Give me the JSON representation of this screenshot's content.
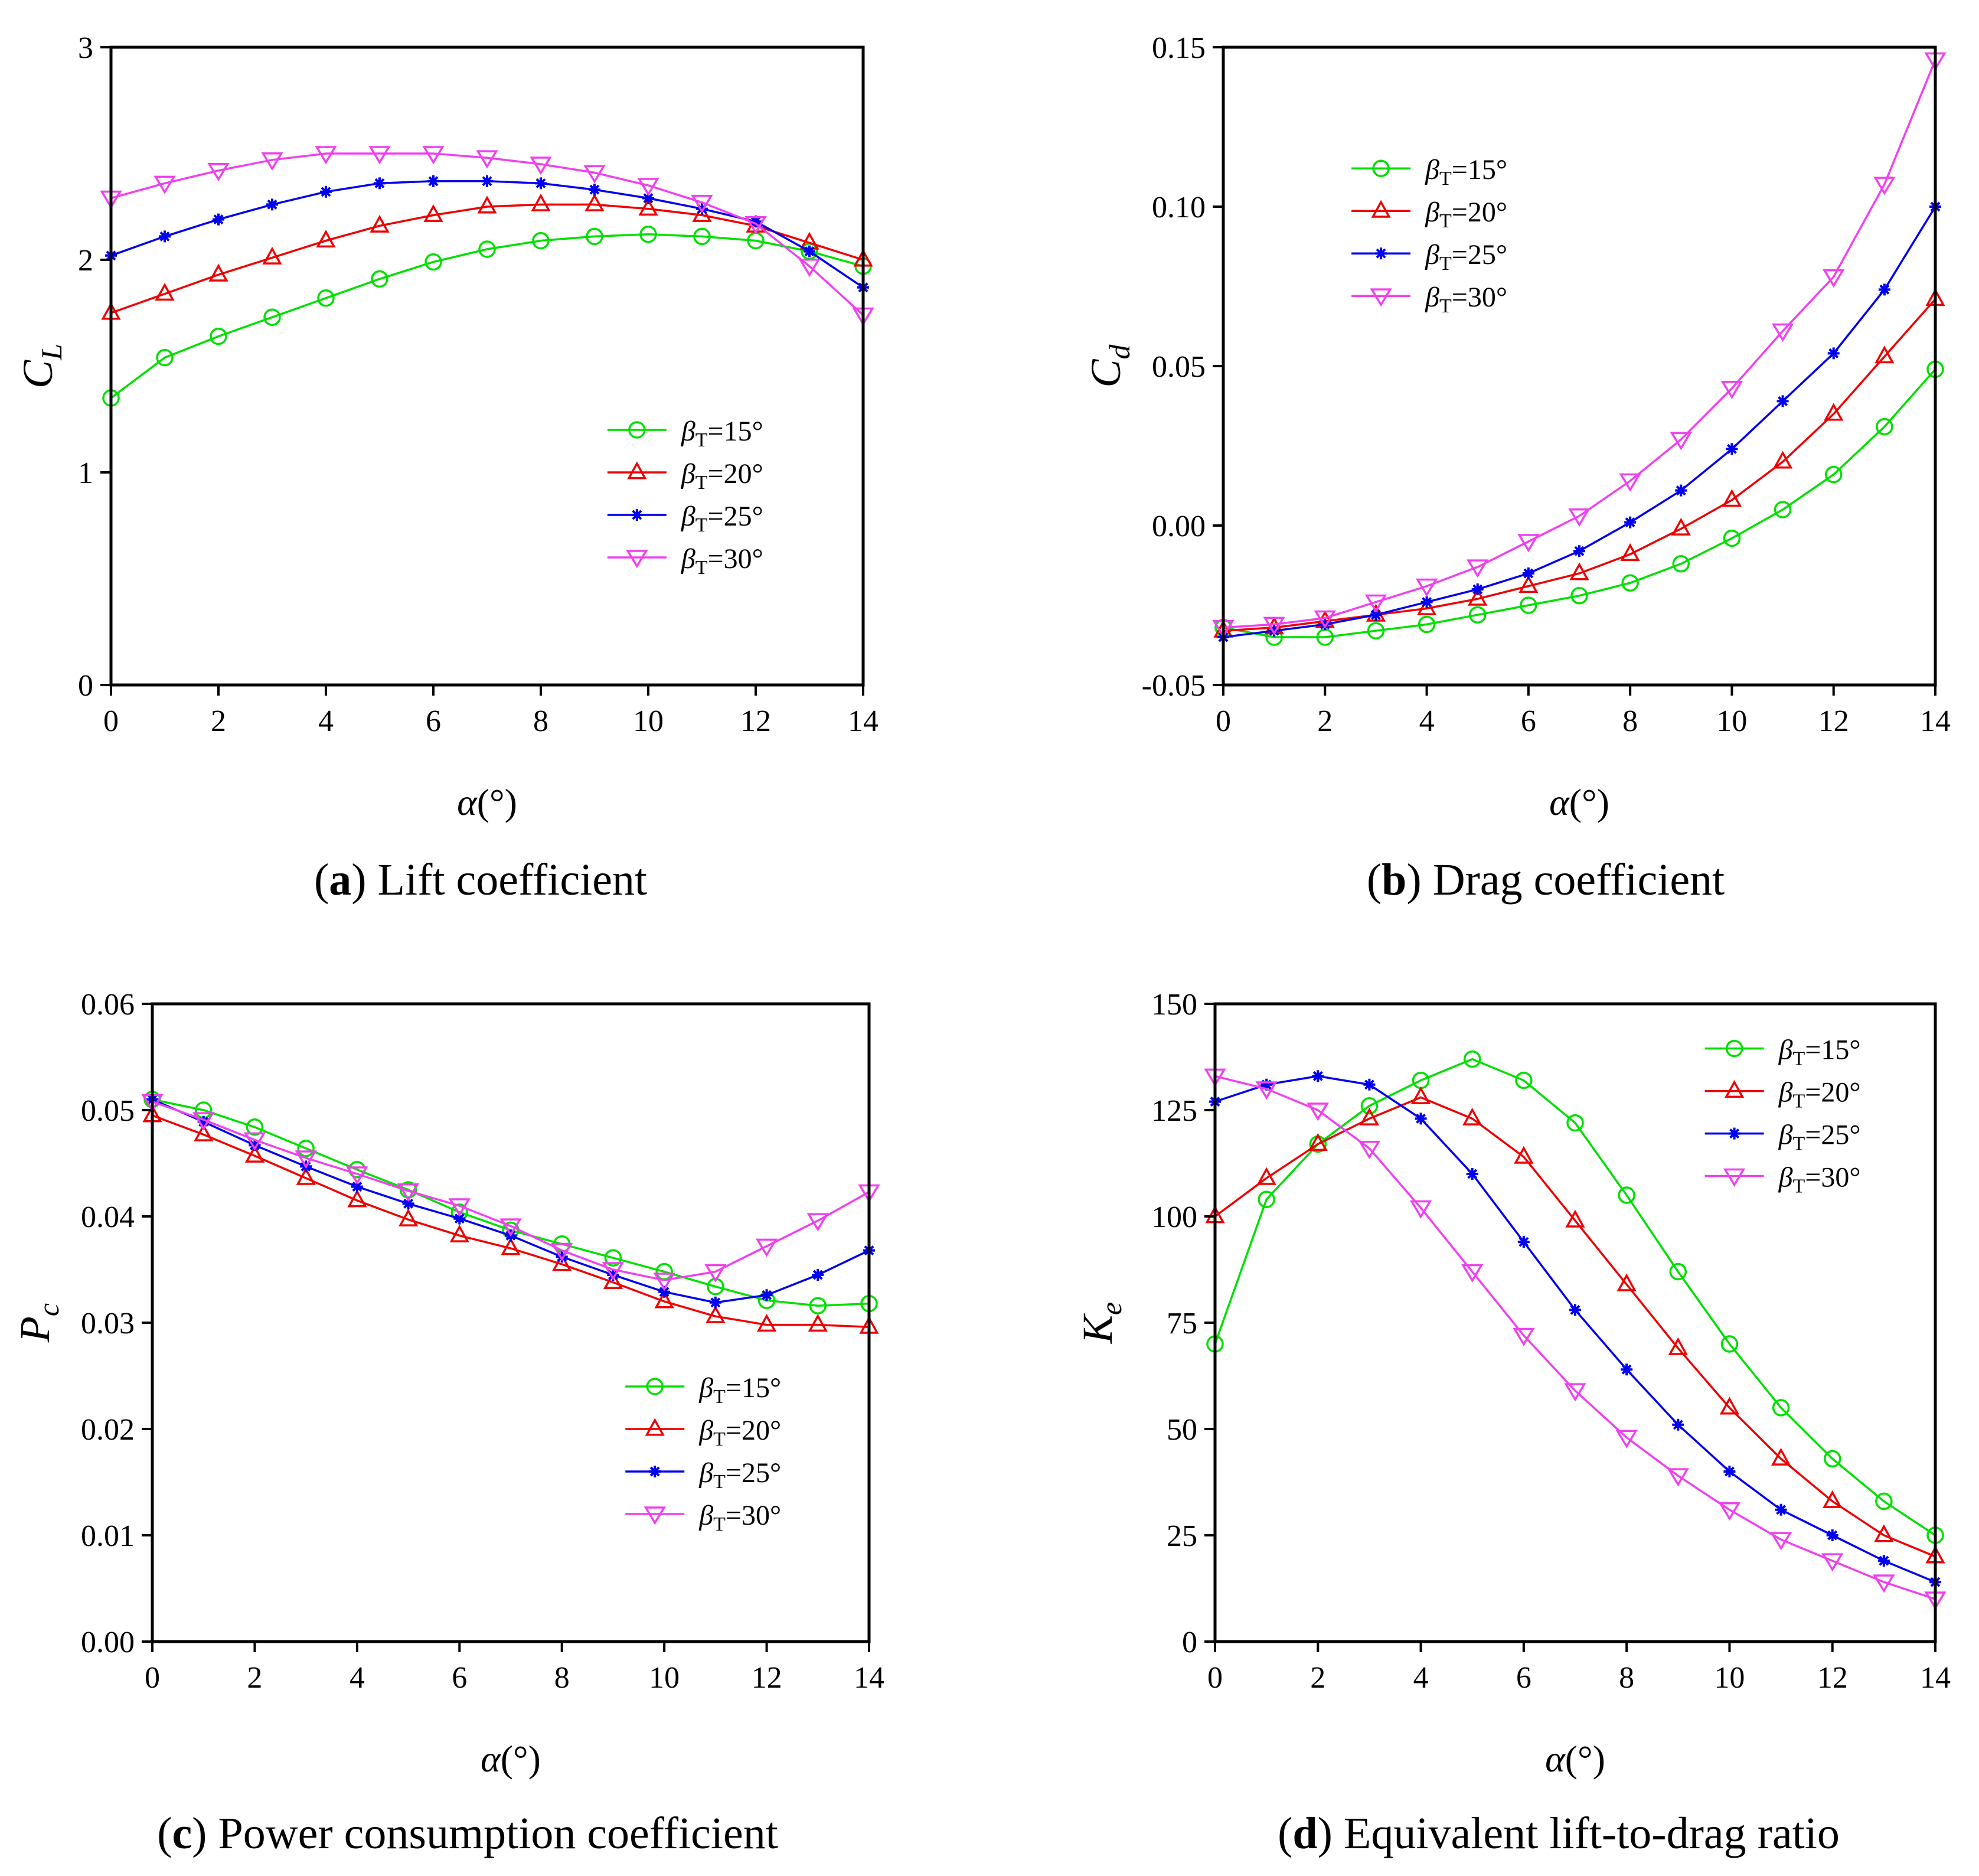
{
  "figure": {
    "x_values": [
      0,
      1,
      2,
      3,
      4,
      5,
      6,
      7,
      8,
      9,
      10,
      11,
      12,
      13,
      14
    ],
    "series_styles": [
      {
        "name": "βT=15°",
        "color": "#00E000",
        "marker": "circle"
      },
      {
        "name": "βT=20°",
        "color": "#F00000",
        "marker": "triangle-up"
      },
      {
        "name": "βT=25°",
        "color": "#0000F0",
        "marker": "star"
      },
      {
        "name": "βT=30°",
        "color": "#F040F0",
        "marker": "triangle-down"
      }
    ]
  },
  "chart_data": [
    {
      "id": "a",
      "type": "line",
      "caption_letter": "a",
      "caption_text": " Lift coefficient",
      "ylabel_main": "C",
      "ylabel_sub": "L",
      "xlabel": "α(°)",
      "xlim": [
        0,
        14
      ],
      "ylim": [
        0,
        3
      ],
      "xticks": [
        0,
        2,
        4,
        6,
        8,
        10,
        12,
        14
      ],
      "xtick_labels": [
        "0",
        "2",
        "4",
        "6",
        "8",
        "10",
        "12",
        "14"
      ],
      "yticks": [
        0,
        1,
        2,
        3
      ],
      "ytick_labels": [
        "0",
        "1",
        "2",
        "3"
      ],
      "legend_position": "bottom-right",
      "series": [
        {
          "name": "βT=15°",
          "legend_main": "β",
          "legend_sub": "T",
          "legend_rest": "=15°",
          "values": [
            1.35,
            1.54,
            1.64,
            1.73,
            1.82,
            1.91,
            1.99,
            2.05,
            2.09,
            2.11,
            2.12,
            2.11,
            2.09,
            2.04,
            1.97
          ]
        },
        {
          "name": "βT=20°",
          "legend_main": "β",
          "legend_sub": "T",
          "legend_rest": "=20°",
          "values": [
            1.75,
            1.84,
            1.93,
            2.01,
            2.09,
            2.16,
            2.21,
            2.25,
            2.26,
            2.26,
            2.24,
            2.21,
            2.16,
            2.08,
            2.0
          ]
        },
        {
          "name": "βT=25°",
          "legend_main": "β",
          "legend_sub": "T",
          "legend_rest": "=25°",
          "values": [
            2.02,
            2.11,
            2.19,
            2.26,
            2.32,
            2.36,
            2.37,
            2.37,
            2.36,
            2.33,
            2.29,
            2.24,
            2.18,
            2.04,
            1.87
          ]
        },
        {
          "name": "βT=30°",
          "legend_main": "β",
          "legend_sub": "T",
          "legend_rest": "=30°",
          "values": [
            2.29,
            2.36,
            2.42,
            2.47,
            2.5,
            2.5,
            2.5,
            2.48,
            2.45,
            2.41,
            2.35,
            2.27,
            2.17,
            1.97,
            1.74
          ]
        }
      ]
    },
    {
      "id": "b",
      "type": "line",
      "caption_letter": "b",
      "caption_text": " Drag coefficient",
      "ylabel_main": "C",
      "ylabel_sub": "d",
      "xlabel": "α(°)",
      "xlim": [
        0,
        14
      ],
      "ylim": [
        -0.05,
        0.15
      ],
      "xticks": [
        0,
        2,
        4,
        6,
        8,
        10,
        12,
        14
      ],
      "xtick_labels": [
        "0",
        "2",
        "4",
        "6",
        "8",
        "10",
        "12",
        "14"
      ],
      "yticks": [
        -0.05,
        0,
        0.05,
        0.1,
        0.15
      ],
      "ytick_labels": [
        "-0.05",
        "0.00",
        "0.05",
        "0.10",
        "0.15"
      ],
      "legend_position": "top-left",
      "series": [
        {
          "name": "βT=15°",
          "legend_main": "β",
          "legend_sub": "T",
          "legend_rest": "=15°",
          "values": [
            -0.032,
            -0.035,
            -0.035,
            -0.033,
            -0.031,
            -0.028,
            -0.025,
            -0.022,
            -0.018,
            -0.012,
            -0.004,
            0.005,
            0.016,
            0.031,
            0.049
          ]
        },
        {
          "name": "βT=20°",
          "legend_main": "β",
          "legend_sub": "T",
          "legend_rest": "=20°",
          "values": [
            -0.033,
            -0.032,
            -0.03,
            -0.028,
            -0.026,
            -0.023,
            -0.019,
            -0.015,
            -0.009,
            -0.001,
            0.008,
            0.02,
            0.035,
            0.053,
            0.071
          ]
        },
        {
          "name": "βT=25°",
          "legend_main": "β",
          "legend_sub": "T",
          "legend_rest": "=25°",
          "values": [
            -0.035,
            -0.033,
            -0.031,
            -0.028,
            -0.024,
            -0.02,
            -0.015,
            -0.008,
            0.001,
            0.011,
            0.024,
            0.039,
            0.054,
            0.074,
            0.1
          ]
        },
        {
          "name": "βT=30°",
          "legend_main": "β",
          "legend_sub": "T",
          "legend_rest": "=30°",
          "values": [
            -0.032,
            -0.031,
            -0.029,
            -0.024,
            -0.019,
            -0.013,
            -0.005,
            0.003,
            0.014,
            0.027,
            0.043,
            0.061,
            0.078,
            0.107,
            0.146
          ]
        }
      ]
    },
    {
      "id": "c",
      "type": "line",
      "caption_letter": "c",
      "caption_text": " Power consumption coefficient",
      "ylabel_main": "P",
      "ylabel_sub": "c",
      "xlabel": "α(°)",
      "xlim": [
        0,
        14
      ],
      "ylim": [
        0,
        0.06
      ],
      "xticks": [
        0,
        2,
        4,
        6,
        8,
        10,
        12,
        14
      ],
      "xtick_labels": [
        "0",
        "2",
        "4",
        "6",
        "8",
        "10",
        "12",
        "14"
      ],
      "yticks": [
        0,
        0.01,
        0.02,
        0.03,
        0.04,
        0.05,
        0.06
      ],
      "ytick_labels": [
        "0.00",
        "0.01",
        "0.02",
        "0.03",
        "0.04",
        "0.05",
        "0.06"
      ],
      "legend_position": "bottom-right",
      "series": [
        {
          "name": "βT=15°",
          "legend_main": "β",
          "legend_sub": "T",
          "legend_rest": "=15°",
          "values": [
            0.051,
            0.05,
            0.0484,
            0.0464,
            0.0444,
            0.0425,
            0.0404,
            0.0387,
            0.0374,
            0.0361,
            0.0348,
            0.0334,
            0.0321,
            0.0316,
            0.0318
          ]
        },
        {
          "name": "βT=20°",
          "legend_main": "β",
          "legend_sub": "T",
          "legend_rest": "=20°",
          "values": [
            0.0495,
            0.0477,
            0.0457,
            0.0436,
            0.0415,
            0.0397,
            0.0382,
            0.037,
            0.0355,
            0.0338,
            0.032,
            0.0306,
            0.0298,
            0.0298,
            0.0296
          ]
        },
        {
          "name": "βT=25°",
          "legend_main": "β",
          "legend_sub": "T",
          "legend_rest": "=25°",
          "values": [
            0.051,
            0.0489,
            0.0467,
            0.0447,
            0.0428,
            0.0412,
            0.0398,
            0.0382,
            0.0362,
            0.0345,
            0.0329,
            0.0319,
            0.0326,
            0.0345,
            0.0368
          ]
        },
        {
          "name": "βT=30°",
          "legend_main": "β",
          "legend_sub": "T",
          "legend_rest": "=30°",
          "values": [
            0.0508,
            0.0491,
            0.0472,
            0.0455,
            0.044,
            0.0424,
            0.041,
            0.0391,
            0.0368,
            0.035,
            0.034,
            0.0348,
            0.0372,
            0.0396,
            0.0423
          ]
        }
      ]
    },
    {
      "id": "d",
      "type": "line",
      "caption_letter": "d",
      "caption_text": " Equivalent lift-to-drag ratio",
      "ylabel_main": "K",
      "ylabel_sub": "e",
      "xlabel": "α(°)",
      "xlim": [
        0,
        14
      ],
      "ylim": [
        0,
        150
      ],
      "xticks": [
        0,
        2,
        4,
        6,
        8,
        10,
        12,
        14
      ],
      "xtick_labels": [
        "0",
        "2",
        "4",
        "6",
        "8",
        "10",
        "12",
        "14"
      ],
      "yticks": [
        0,
        25,
        50,
        75,
        100,
        125,
        150
      ],
      "ytick_labels": [
        "0",
        "25",
        "50",
        "75",
        "100",
        "125",
        "150"
      ],
      "legend_position": "top-right",
      "series": [
        {
          "name": "βT=15°",
          "legend_main": "β",
          "legend_sub": "T",
          "legend_rest": "=15°",
          "values": [
            70,
            104,
            117,
            126,
            132,
            137,
            132,
            122,
            105,
            87,
            70,
            55,
            43,
            33,
            25
          ]
        },
        {
          "name": "βT=20°",
          "legend_main": "β",
          "legend_sub": "T",
          "legend_rest": "=20°",
          "values": [
            100,
            109,
            117,
            123,
            128,
            123,
            114,
            99,
            84,
            69,
            55,
            43,
            33,
            25,
            20
          ]
        },
        {
          "name": "βT=25°",
          "legend_main": "β",
          "legend_sub": "T",
          "legend_rest": "=25°",
          "values": [
            127,
            131,
            133,
            131,
            123,
            110,
            94,
            78,
            64,
            51,
            40,
            31,
            25,
            19,
            14
          ]
        },
        {
          "name": "βT=30°",
          "legend_main": "β",
          "legend_sub": "T",
          "legend_rest": "=30°",
          "values": [
            133,
            130,
            125,
            116,
            102,
            87,
            72,
            59,
            48,
            39,
            31,
            24,
            19,
            14,
            10
          ]
        }
      ]
    }
  ]
}
